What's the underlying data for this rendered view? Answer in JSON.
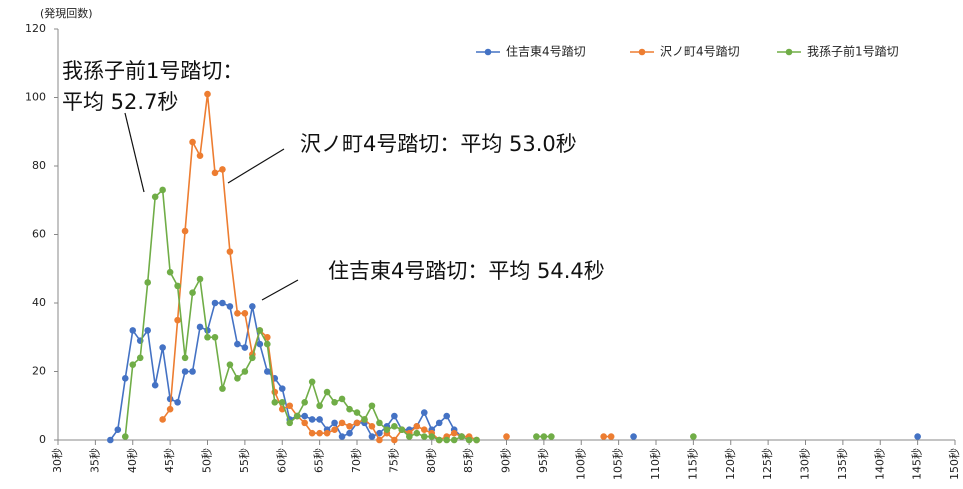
{
  "chart_data": {
    "type": "line",
    "y_label": "(発現回数)",
    "annotations": [
      "我孫子前1号踏切：",
      "平均 52.7秒",
      "沢ノ町4号踏切：平均 53.0秒",
      "住吉東4号踏切：平均 54.4秒"
    ],
    "x": [
      37,
      38,
      39,
      40,
      41,
      42,
      43,
      44,
      45,
      46,
      47,
      48,
      49,
      50,
      51,
      52,
      53,
      54,
      55,
      56,
      57,
      58,
      59,
      60,
      61,
      62,
      63,
      64,
      65,
      66,
      67,
      68,
      69,
      70,
      71,
      72,
      73,
      74,
      75,
      76,
      77,
      78,
      79,
      80,
      81,
      82,
      83,
      84,
      85,
      86,
      87,
      88,
      89,
      90,
      91,
      92,
      93,
      94,
      95,
      96,
      97,
      98,
      99,
      100,
      101,
      102,
      103,
      104,
      105,
      106,
      107,
      108,
      109,
      110,
      111,
      112,
      113,
      114,
      115,
      116,
      117,
      118,
      119,
      120,
      121,
      122,
      123,
      124,
      125,
      126,
      127,
      128,
      129,
      130,
      131,
      132,
      133,
      134,
      135,
      136,
      137,
      138,
      139,
      140,
      141,
      142,
      143,
      144,
      145
    ],
    "series": [
      {
        "name": "住吉東4号踏切",
        "color": "#4472c4",
        "values": [
          0,
          3,
          18,
          32,
          29,
          32,
          16,
          27,
          12,
          11,
          20,
          20,
          33,
          32,
          40,
          40,
          39,
          28,
          27,
          39,
          28,
          20,
          18,
          15,
          6,
          7,
          7,
          6,
          6,
          3,
          5,
          1,
          2,
          5,
          5,
          1,
          2,
          4,
          7,
          3,
          3,
          4,
          8,
          3,
          5,
          7,
          3,
          1,
          null,
          null,
          null,
          null,
          null,
          null,
          null,
          null,
          null,
          null,
          null,
          null,
          null,
          null,
          null,
          null,
          null,
          null,
          null,
          null,
          null,
          null,
          1,
          null,
          null,
          null,
          null,
          null,
          null,
          null,
          null,
          null,
          null,
          null,
          null,
          null,
          null,
          null,
          null,
          null,
          null,
          null,
          null,
          null,
          null,
          null,
          null,
          null,
          null,
          null,
          null,
          null,
          null,
          null,
          null,
          null,
          null,
          null,
          null,
          null,
          1
        ]
      },
      {
        "name": "沢ノ町4号踏切",
        "color": "#ed7d31",
        "values": [
          null,
          null,
          null,
          null,
          null,
          null,
          null,
          6,
          9,
          35,
          61,
          87,
          83,
          101,
          78,
          79,
          55,
          37,
          37,
          25,
          32,
          30,
          14,
          9,
          10,
          7,
          5,
          2,
          2,
          2,
          3,
          5,
          4,
          5,
          6,
          4,
          0,
          2,
          0,
          3,
          2,
          4,
          3,
          2,
          0,
          1,
          2,
          1,
          1,
          0,
          null,
          null,
          null,
          1,
          null,
          null,
          null,
          null,
          null,
          null,
          null,
          null,
          null,
          null,
          null,
          null,
          1,
          1,
          null,
          null,
          null,
          null,
          null,
          null,
          null,
          null,
          null,
          null,
          null,
          null,
          null,
          null,
          null,
          null,
          null,
          null,
          null,
          null,
          null,
          null,
          null,
          null,
          null,
          null,
          null,
          null,
          null,
          null,
          null,
          null,
          null,
          null,
          null,
          null,
          null,
          null,
          null,
          null,
          null
        ]
      },
      {
        "name": "我孫子前1号踏切",
        "color": "#70ad47",
        "values": [
          null,
          null,
          1,
          22,
          24,
          46,
          71,
          73,
          49,
          45,
          24,
          43,
          47,
          30,
          30,
          15,
          22,
          18,
          20,
          24,
          32,
          28,
          11,
          11,
          5,
          7,
          11,
          17,
          10,
          14,
          11,
          12,
          9,
          8,
          6,
          10,
          5,
          3,
          4,
          3,
          1,
          2,
          1,
          1,
          0,
          0,
          0,
          1,
          0,
          0,
          null,
          null,
          null,
          null,
          null,
          null,
          null,
          1,
          1,
          1,
          null,
          null,
          null,
          null,
          null,
          null,
          null,
          null,
          null,
          null,
          null,
          null,
          null,
          null,
          null,
          null,
          null,
          null,
          1,
          null,
          null,
          null,
          null,
          null,
          null,
          null,
          null,
          null,
          null,
          null,
          null,
          null,
          null,
          null,
          null,
          null,
          null,
          null,
          null,
          null,
          null,
          null,
          null,
          null,
          null,
          null,
          null,
          null,
          null
        ]
      }
    ],
    "xlim": [
      30,
      150
    ],
    "xticks": [
      {
        "value": 30,
        "label": "30秒"
      },
      {
        "value": 35,
        "label": "35秒"
      },
      {
        "value": 40,
        "label": "40秒"
      },
      {
        "value": 45,
        "label": "45秒"
      },
      {
        "value": 50,
        "label": "50秒"
      },
      {
        "value": 55,
        "label": "55秒"
      },
      {
        "value": 60,
        "label": "60秒"
      },
      {
        "value": 65,
        "label": "65秒"
      },
      {
        "value": 70,
        "label": "70秒"
      },
      {
        "value": 75,
        "label": "75秒"
      },
      {
        "value": 80,
        "label": "80秒"
      },
      {
        "value": 85,
        "label": "85秒"
      },
      {
        "value": 90,
        "label": "90秒"
      },
      {
        "value": 95,
        "label": "95秒"
      },
      {
        "value": 100,
        "label": "100秒"
      },
      {
        "value": 105,
        "label": "105秒"
      },
      {
        "value": 110,
        "label": "110秒"
      },
      {
        "value": 115,
        "label": "115秒"
      },
      {
        "value": 120,
        "label": "120秒"
      },
      {
        "value": 125,
        "label": "125秒"
      },
      {
        "value": 130,
        "label": "130秒"
      },
      {
        "value": 135,
        "label": "135秒"
      },
      {
        "value": 140,
        "label": "140秒"
      },
      {
        "value": 145,
        "label": "145秒"
      },
      {
        "value": 150,
        "label": "150秒"
      }
    ],
    "ylim": [
      0,
      120
    ],
    "yticks": [
      0,
      20,
      40,
      60,
      80,
      100,
      120
    ],
    "legend": "top-right"
  }
}
